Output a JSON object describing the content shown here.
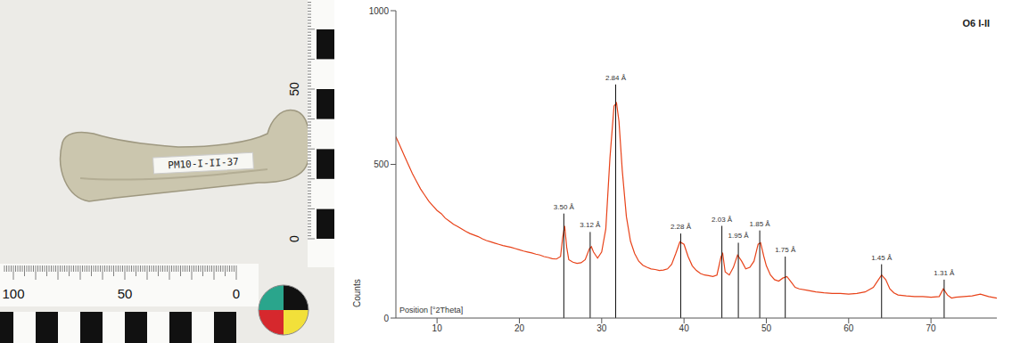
{
  "photo": {
    "specimen_label": "PM10-I-II-37",
    "ruler_bottom_labels": [
      100,
      50,
      0
    ],
    "ruler_side_labels": [
      50,
      0
    ]
  },
  "chart_data": {
    "type": "line",
    "title": "O6 I-II",
    "x_label": "Position [°2Theta]",
    "y_label": "Counts",
    "color": "#e8431a",
    "grid": false,
    "xlim": [
      5,
      78
    ],
    "ylim": [
      0,
      1000
    ],
    "xticks": [
      10,
      20,
      30,
      40,
      50,
      60,
      70
    ],
    "yticks": [
      0,
      500,
      1000
    ],
    "x": [
      5,
      5.5,
      6,
      6.5,
      7,
      7.5,
      8,
      8.5,
      9,
      9.5,
      10,
      10.5,
      11,
      11.5,
      12,
      12.5,
      13,
      13.5,
      14,
      14.5,
      15,
      15.5,
      16,
      16.5,
      17,
      17.5,
      18,
      18.5,
      19,
      19.5,
      20,
      20.5,
      21,
      21.5,
      22,
      22.5,
      23,
      23.5,
      24,
      24.5,
      25,
      25.25,
      25.5,
      25.75,
      26,
      26.5,
      27,
      27.5,
      28,
      28.5,
      28.75,
      29,
      29.5,
      30,
      30.5,
      31,
      31.5,
      31.8,
      32.1,
      32.5,
      33,
      33.5,
      34,
      34.5,
      35,
      35.5,
      36,
      36.5,
      37,
      37.5,
      38,
      38.5,
      39,
      39.5,
      40,
      40.5,
      41,
      41.5,
      42,
      42.5,
      43,
      43.5,
      44,
      44.5,
      44.7,
      45,
      45.5,
      46,
      46.5,
      47,
      47.5,
      48,
      48.5,
      49,
      49.3,
      49.7,
      50,
      50.5,
      51,
      51.5,
      52,
      52.5,
      53,
      53.5,
      54,
      55,
      56,
      57,
      58,
      59,
      60,
      61,
      62,
      63,
      63.5,
      64,
      64.5,
      65,
      65.5,
      66,
      67,
      68,
      69,
      70,
      71,
      71.5,
      72,
      72.5,
      73,
      74,
      75,
      76,
      77,
      78
    ],
    "values": [
      590,
      560,
      530,
      500,
      470,
      445,
      420,
      400,
      380,
      365,
      350,
      340,
      325,
      315,
      305,
      298,
      290,
      282,
      275,
      270,
      265,
      258,
      252,
      248,
      244,
      240,
      236,
      233,
      230,
      226,
      222,
      218,
      215,
      212,
      208,
      205,
      200,
      197,
      193,
      192,
      200,
      260,
      300,
      230,
      190,
      182,
      178,
      180,
      190,
      225,
      232,
      215,
      195,
      215,
      290,
      520,
      690,
      700,
      640,
      480,
      330,
      250,
      210,
      185,
      172,
      165,
      160,
      158,
      155,
      156,
      160,
      175,
      210,
      248,
      240,
      200,
      170,
      155,
      145,
      140,
      138,
      135,
      140,
      200,
      210,
      150,
      140,
      165,
      205,
      185,
      160,
      165,
      185,
      240,
      245,
      200,
      170,
      140,
      125,
      120,
      130,
      135,
      118,
      100,
      95,
      90,
      85,
      82,
      80,
      80,
      78,
      80,
      85,
      100,
      120,
      140,
      125,
      95,
      82,
      75,
      72,
      70,
      70,
      68,
      70,
      95,
      75,
      65,
      68,
      70,
      72,
      78,
      70,
      65
    ],
    "annotations": [
      {
        "x": 25.4,
        "y": 340,
        "label": "3.50 Å"
      },
      {
        "x": 28.6,
        "y": 280,
        "label": "3.12 Å"
      },
      {
        "x": 31.7,
        "y": 760,
        "label": "2.84 Å"
      },
      {
        "x": 39.6,
        "y": 275,
        "label": "2.28 Å"
      },
      {
        "x": 44.6,
        "y": 300,
        "label": "2.03 Å"
      },
      {
        "x": 46.6,
        "y": 245,
        "label": "1.95 Å"
      },
      {
        "x": 49.2,
        "y": 285,
        "label": "1.85 Å"
      },
      {
        "x": 52.3,
        "y": 200,
        "label": "1.75 Å"
      },
      {
        "x": 64,
        "y": 175,
        "label": "1.45 Å"
      },
      {
        "x": 71.6,
        "y": 125,
        "label": "1.31 Å"
      }
    ]
  }
}
